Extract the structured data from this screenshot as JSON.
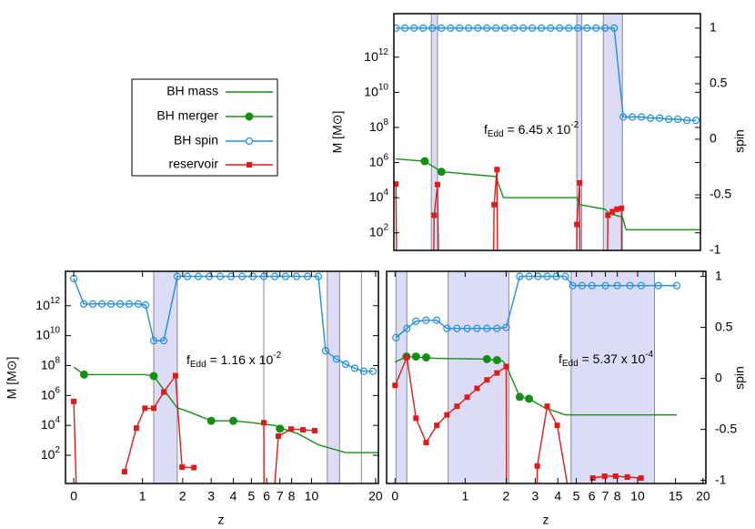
{
  "chart_data": [
    {
      "type": "line",
      "xscale": "log1p",
      "ylog": true,
      "xlim": [
        -0.02,
        19.4
      ],
      "ylim": [
        10,
        300000000000000
      ],
      "y2lim": [
        -1,
        1.13
      ],
      "yticks": [
        {
          "value": 100,
          "label": "10^2"
        },
        {
          "value": 10000,
          "label": "10^4"
        },
        {
          "value": 1000000,
          "label": "10^6"
        },
        {
          "value": 100000000,
          "label": "10^8"
        },
        {
          "value": 10000000000,
          "label": "10^10"
        },
        {
          "value": 1000000000000,
          "label": "10^12"
        }
      ],
      "y2ticks": [
        -1,
        -0.5,
        0,
        0.5,
        1
      ],
      "ylabel": "M [M⊙]",
      "y2label": "spin",
      "annotation": [
        "f",
        "Edd",
        " = 6.45 x 10",
        "-2"
      ],
      "shaded": [
        [
          0.42,
          0.51
        ],
        [
          5.0,
          5.3
        ],
        [
          6.8,
          8.42
        ]
      ],
      "vlines": [],
      "series": [
        {
          "name": "BH mass",
          "color": "#139013",
          "line": true,
          "marker": "none",
          "x": [
            0,
            0.33,
            0.57,
            1.69,
            1.9,
            5.0,
            5.17,
            6.93,
            7.3,
            8.42,
            8.77,
            19.4
          ],
          "values": [
            1600000,
            1200000,
            300000,
            160000,
            10000,
            10000,
            4000,
            2200,
            1200,
            800,
            150,
            150
          ]
        },
        {
          "name": "BH merger",
          "color": "#139013",
          "line": false,
          "marker": "circle-filled",
          "x": [
            0.33,
            0.57
          ],
          "values": [
            1200000,
            300000
          ]
        },
        {
          "name": "BH spin",
          "color": "#1f8ee0",
          "line": true,
          "marker": "circle-open",
          "axis": "y2",
          "x": [
            0,
            0.094,
            0.197,
            0.31,
            0.434,
            0.569,
            0.717,
            0.879,
            1.055,
            1.249,
            1.461,
            1.692,
            1.946,
            2.224,
            2.527,
            2.86,
            3.224,
            3.622,
            4.058,
            4.535,
            5.057,
            5.628,
            6.253,
            6.936,
            7.684,
            8.502,
            9.397,
            10.378,
            11.45,
            12.62,
            13.91,
            15.31,
            16.85,
            18.53
          ],
          "values": [
            1,
            1,
            1,
            1,
            1,
            1,
            1,
            1,
            1,
            1,
            1,
            1,
            1,
            1,
            1,
            1,
            1,
            1,
            1,
            1,
            1,
            1,
            1,
            1,
            1,
            0.2,
            0.2,
            0.2,
            0.19,
            0.19,
            0.18,
            0.18,
            0.17,
            0.17
          ]
        },
        {
          "name": "reservoir",
          "color": "#e01a1a",
          "line": true,
          "marker": "square",
          "x": [
            0,
            0.01,
            null,
            0.45,
            0.46,
            0.51,
            0.53,
            null,
            1.62,
            1.645,
            1.72,
            1.74,
            null,
            4.98,
            5.0,
            5.17,
            5.2,
            null,
            7.1,
            7.16,
            7.53,
            7.93,
            8.34,
            8.36
          ],
          "values": [
            60000,
            0.1,
            null,
            0.1,
            1000,
            56000,
            0.1,
            null,
            0.1,
            4000,
            400000,
            0.1,
            null,
            0.1,
            300,
            70000,
            0.1,
            null,
            0.1,
            1000,
            1600,
            2200,
            2500,
            0.1
          ]
        }
      ]
    },
    {
      "type": "line",
      "xscale": "log1p",
      "ylog": true,
      "xlim": [
        -0.08,
        20.6
      ],
      "ylim": [
        1.3,
        200000000000000
      ],
      "y2lim": [
        -1.03,
        1.05
      ],
      "xticks": [
        0,
        1,
        2,
        3,
        4,
        5,
        6,
        7,
        8,
        10,
        20
      ],
      "yticks": [
        {
          "value": 100,
          "label": "10^2"
        },
        {
          "value": 10000,
          "label": "10^4"
        },
        {
          "value": 1000000,
          "label": "10^6"
        },
        {
          "value": 100000000,
          "label": "10^8"
        },
        {
          "value": 10000000000,
          "label": "10^10"
        },
        {
          "value": 1000000000000,
          "label": "10^12"
        }
      ],
      "xlabel": "z",
      "ylabel": "M [M⊙]",
      "annotation": [
        "f",
        "Edd",
        " = 1.16 x 10",
        "-2"
      ],
      "shaded": [
        [
          1.24,
          1.84
        ],
        [
          11.9,
          13.6
        ]
      ],
      "vlines": [
        5.8,
        17.2
      ],
      "series": [
        {
          "color": "#139013",
          "line": true,
          "marker": "none",
          "x": [
            0,
            0.11,
            1.06,
            1.24,
            1.5,
            1.84,
            2.2,
            3.0,
            4.0,
            5.1,
            5.8,
            6.6,
            7.5,
            8.5,
            10.8,
            14.5,
            20.6
          ],
          "values": [
            80000000,
            25000000,
            25000000,
            20000000,
            2000000,
            150000,
            80000,
            20000,
            20000,
            15000,
            12000,
            10000,
            5000,
            3000,
            500,
            150,
            150
          ]
        },
        {
          "color": "#139013",
          "line": false,
          "marker": "circle-filled",
          "x": [
            0.11,
            1.24,
            3.0,
            4.0,
            7.0
          ],
          "values": [
            25000000,
            20000000,
            20000,
            20000,
            6000
          ]
        },
        {
          "color": "#1f8ee0",
          "line": true,
          "marker": "circle-open",
          "axis": "y2",
          "x": [
            0,
            0.106,
            0.212,
            0.329,
            0.456,
            0.596,
            0.749,
            0.917,
            1.064,
            1.241,
            1.479,
            1.844,
            2.146,
            2.51,
            2.92,
            3.38,
            3.89,
            4.46,
            5.09,
            5.8,
            6.59,
            7.47,
            8.46,
            9.56,
            10.79,
            11.68,
            13.15,
            14.52,
            16.01,
            17.63,
            19.43
          ],
          "values": [
            0.98,
            0.73,
            0.73,
            0.73,
            0.73,
            0.73,
            0.73,
            0.73,
            0.72,
            0.37,
            0.37,
            1,
            1,
            1,
            1,
            1,
            1,
            1,
            1,
            1,
            1,
            1,
            1,
            1,
            1,
            0.27,
            0.19,
            0.14,
            0.1,
            0.07,
            0.07
          ]
        },
        {
          "color": "#e01a1a",
          "line": true,
          "marker": "square",
          "x": [
            0,
            0.03,
            null,
            0.67,
            0.88,
            1.05,
            1.24,
            1.48,
            1.79,
            1.98,
            2.36,
            null,
            5.8,
            5.82,
            null,
            6.5,
            6.87,
            7.95,
            9.09,
            10.36
          ],
          "values": [
            400000,
            0.1,
            null,
            8,
            6600,
            140000,
            140000,
            1700000,
            21000000,
            16,
            15,
            null,
            15000,
            0.1,
            null,
            0.1,
            1900,
            5700,
            5000,
            4400
          ]
        }
      ]
    },
    {
      "type": "line",
      "xscale": "log1p",
      "ylog": true,
      "xlim": [
        -0.08,
        20.6
      ],
      "ylim": [
        1.3,
        200000000000000
      ],
      "y2lim": [
        -1.03,
        1.05
      ],
      "xticks": [
        0,
        1,
        2,
        3,
        4,
        5,
        6,
        7,
        8,
        10,
        15,
        20
      ],
      "y2ticks": [
        -1,
        -0.5,
        0,
        0.5,
        1
      ],
      "xlabel": "z",
      "y2label": "spin",
      "annotation": [
        "f",
        "Edd",
        " = 5.37 x 10",
        "-4"
      ],
      "shaded": [
        [
          0.01,
          0.124
        ],
        [
          0.69,
          2.08
        ],
        [
          4.7,
          12.0
        ]
      ],
      "vlines": [],
      "series": [
        {
          "color": "#139013",
          "line": true,
          "marker": "none",
          "x": [
            0,
            0.12,
            0.5,
            1.5,
            1.9,
            2.0,
            2.43,
            2.76,
            3.4,
            4.39,
            15.2
          ],
          "values": [
            170000000,
            400000000,
            300000000,
            270000000,
            200000000,
            100000000,
            800000,
            600000,
            150000,
            50000,
            50000
          ]
        },
        {
          "color": "#139013",
          "line": false,
          "marker": "circle-filled",
          "x": [
            0.12,
            0.23,
            0.36,
            1.48,
            1.74,
            2.43,
            2.76
          ],
          "values": [
            400000000,
            400000000,
            350000000,
            270000000,
            230000000,
            800000,
            600000
          ]
        },
        {
          "color": "#1f8ee0",
          "line": true,
          "marker": "circle-open",
          "axis": "y2",
          "x": [
            0.009,
            0.124,
            0.23,
            0.358,
            0.51,
            0.67,
            0.845,
            1.04,
            1.25,
            1.48,
            1.74,
            2.0,
            2.43,
            2.76,
            3.11,
            3.5,
            3.92,
            4.39,
            4.79,
            5.35,
            6.0,
            7.0,
            8.0,
            9.2,
            10.4,
            12.5,
            15.2
          ],
          "values": [
            0.4,
            0.49,
            0.56,
            0.57,
            0.57,
            0.49,
            0.49,
            0.49,
            0.49,
            0.49,
            0.49,
            0.5,
            1,
            1,
            1,
            1,
            1,
            1,
            0.91,
            0.91,
            0.91,
            0.91,
            0.91,
            0.91,
            0.91,
            0.91,
            0.91
          ]
        },
        {
          "color": "#e01a1a",
          "line": true,
          "marker": "square",
          "x": [
            0,
            0.124,
            0.23,
            0.36,
            0.51,
            0.67,
            0.845,
            1.04,
            1.25,
            1.48,
            1.74,
            2.0,
            2.01,
            null,
            3.06,
            3.08,
            3.5,
            3.97,
            4.64,
            null,
            6.06,
            6.94,
            7.85,
            8.94,
            10.38
          ],
          "values": [
            4700000,
            350000000,
            30000,
            700,
            10000,
            50000,
            190000,
            760000,
            3000000,
            11000000,
            32000000,
            87000000,
            0.1,
            null,
            0.1,
            19,
            190000,
            10000,
            0.1,
            null,
            3,
            4,
            4,
            3.5,
            3
          ]
        }
      ]
    }
  ]
}
